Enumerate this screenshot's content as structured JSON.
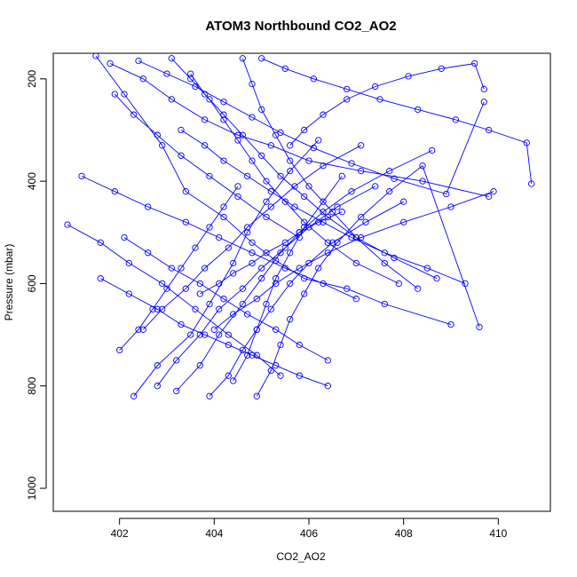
{
  "chart_data": {
    "type": "line",
    "title": "ATOM3 Northbound CO2_AO2",
    "xlabel": "CO2_AO2",
    "ylabel": "Pressure (mbar)",
    "xlim": [
      400.6,
      411.1
    ],
    "ylim": [
      1045,
      150
    ],
    "y_reversed": true,
    "x_ticks": [
      402,
      404,
      406,
      408,
      410
    ],
    "y_ticks": [
      200,
      400,
      600,
      800,
      1000
    ],
    "marker": "open-circle",
    "series_color": "#0000ff",
    "series": [
      {
        "x": [
          401.5,
          402.1,
          402.9,
          403.4,
          404.2,
          404.8,
          405.3,
          405.9,
          406.8,
          407.6,
          409.0
        ],
        "y": [
          155,
          230,
          330,
          420,
          470,
          520,
          555,
          590,
          610,
          640,
          680
        ]
      },
      {
        "x": [
          402.3,
          402.8,
          403.5,
          403.9,
          404.4,
          404.7,
          405.1,
          405.6,
          406.2
        ],
        "y": [
          820,
          760,
          700,
          640,
          560,
          500,
          440,
          380,
          320
        ]
      },
      {
        "x": [
          401.8,
          402.5,
          403.1,
          403.8,
          404.5,
          405.2,
          406.0,
          407.1,
          408.4,
          409.8
        ],
        "y": [
          170,
          200,
          240,
          280,
          310,
          330,
          360,
          380,
          400,
          430
        ]
      },
      {
        "x": [
          400.9,
          401.6,
          402.2,
          402.9,
          403.6,
          404.3,
          404.9,
          405.4
        ],
        "y": [
          485,
          520,
          560,
          600,
          650,
          700,
          740,
          780
        ]
      },
      {
        "x": [
          403.2,
          403.7,
          404.1,
          404.6,
          405.0,
          405.4,
          405.8,
          406.3,
          406.9,
          407.7,
          408.6
        ],
        "y": [
          810,
          760,
          700,
          640,
          590,
          540,
          500,
          460,
          420,
          380,
          340
        ]
      },
      {
        "x": [
          405.0,
          405.5,
          406.1,
          406.8,
          407.5,
          408.3,
          409.1,
          409.8,
          410.6,
          410.7
        ],
        "y": [
          160,
          180,
          200,
          220,
          240,
          260,
          280,
          300,
          325,
          405
        ]
      },
      {
        "x": [
          402.0,
          402.4,
          402.7,
          403.0,
          403.3,
          403.6,
          403.9,
          404.2,
          404.5
        ],
        "y": [
          730,
          690,
          650,
          610,
          570,
          530,
          490,
          450,
          410
        ]
      },
      {
        "x": [
          401.2,
          401.9,
          402.6,
          403.4,
          404.1,
          404.8,
          405.5,
          406.3,
          407.0
        ],
        "y": [
          390,
          420,
          450,
          480,
          510,
          540,
          570,
          600,
          630
        ]
      },
      {
        "x": [
          403.9,
          404.3,
          404.6,
          404.9,
          405.2,
          405.6,
          406.0,
          406.5,
          407.2,
          408.0
        ],
        "y": [
          820,
          780,
          730,
          690,
          650,
          600,
          560,
          520,
          480,
          440
        ]
      },
      {
        "x": [
          402.4,
          403.0,
          403.6,
          404.2,
          404.8,
          405.4,
          406.1,
          406.9,
          407.8,
          408.9,
          409.7
        ],
        "y": [
          165,
          190,
          215,
          245,
          275,
          305,
          335,
          365,
          395,
          425,
          245
        ]
      },
      {
        "x": [
          404.4,
          404.7,
          404.9,
          405.1,
          405.3,
          405.6,
          405.9,
          406.3,
          406.7
        ],
        "y": [
          790,
          740,
          690,
          640,
          590,
          540,
          490,
          440,
          390
        ]
      },
      {
        "x": [
          401.6,
          402.2,
          402.8,
          403.3,
          403.8,
          404.3,
          404.8,
          405.3,
          405.8,
          406.4
        ],
        "y": [
          590,
          620,
          650,
          680,
          700,
          720,
          740,
          760,
          780,
          800
        ]
      },
      {
        "x": [
          403.1,
          403.5,
          403.9,
          404.2,
          404.5,
          404.8,
          405.1,
          405.5,
          405.9,
          406.4,
          407.0,
          407.9
        ],
        "y": [
          160,
          200,
          240,
          280,
          320,
          360,
          400,
          440,
          480,
          520,
          560,
          600
        ]
      },
      {
        "x": [
          402.5,
          402.9,
          403.4,
          403.8,
          404.3,
          404.7,
          405.2,
          405.7,
          406.3,
          407.1
        ],
        "y": [
          690,
          650,
          610,
          570,
          530,
          490,
          450,
          410,
          370,
          330
        ]
      },
      {
        "x": [
          404.0,
          404.4,
          404.9,
          405.3,
          405.8,
          406.4,
          407.1,
          408.0,
          409.0,
          409.9
        ],
        "y": [
          690,
          660,
          630,
          600,
          570,
          540,
          510,
          480,
          450,
          420
        ]
      },
      {
        "x": [
          405.6,
          405.9,
          406.3,
          406.8,
          407.4,
          408.1,
          408.8,
          409.5,
          409.7
        ],
        "y": [
          330,
          300,
          270,
          240,
          215,
          195,
          180,
          170,
          220
        ]
      },
      {
        "x": [
          402.8,
          403.2,
          403.7,
          404.1,
          404.6,
          405.0,
          405.5,
          406.0,
          406.6,
          407.4
        ],
        "y": [
          800,
          750,
          700,
          650,
          610,
          570,
          530,
          490,
          450,
          410
        ]
      },
      {
        "x": [
          403.5,
          403.8,
          404.2,
          404.6,
          405.0,
          405.4,
          405.9,
          406.4,
          407.0,
          407.8,
          408.7
        ],
        "y": [
          190,
          230,
          270,
          310,
          350,
          390,
          430,
          470,
          510,
          550,
          590
        ]
      },
      {
        "x": [
          404.9,
          405.2,
          405.4,
          405.6,
          405.9,
          406.2,
          406.6,
          407.1,
          407.7,
          408.4,
          409.6
        ],
        "y": [
          820,
          770,
          720,
          670,
          620,
          570,
          520,
          470,
          420,
          370,
          685
        ]
      },
      {
        "x": [
          401.9,
          402.3,
          402.8,
          403.3,
          403.9,
          404.5,
          405.1,
          405.8
        ],
        "y": [
          230,
          270,
          310,
          350,
          390,
          430,
          470,
          510
        ]
      },
      {
        "x": [
          403.7,
          404.1,
          404.4,
          404.8,
          405.1,
          405.5,
          405.8,
          406.2,
          406.7
        ],
        "y": [
          620,
          600,
          580,
          560,
          540,
          520,
          500,
          480,
          460
        ]
      },
      {
        "x": [
          404.6,
          404.8,
          405.0,
          405.3,
          405.6,
          406.0,
          406.5,
          407.0,
          407.6,
          408.3
        ],
        "y": [
          160,
          210,
          260,
          310,
          360,
          410,
          460,
          510,
          560,
          610
        ]
      },
      {
        "x": [
          402.1,
          402.6,
          403.1,
          403.7,
          404.2,
          404.7,
          405.3,
          405.8,
          406.4
        ],
        "y": [
          510,
          540,
          570,
          600,
          630,
          660,
          690,
          720,
          750
        ]
      },
      {
        "x": [
          403.3,
          403.8,
          404.2,
          404.7,
          405.2,
          405.7,
          406.3,
          406.9,
          407.6,
          408.5,
          409.3
        ],
        "y": [
          300,
          330,
          360,
          390,
          420,
          450,
          480,
          510,
          540,
          570,
          600
        ]
      }
    ]
  }
}
